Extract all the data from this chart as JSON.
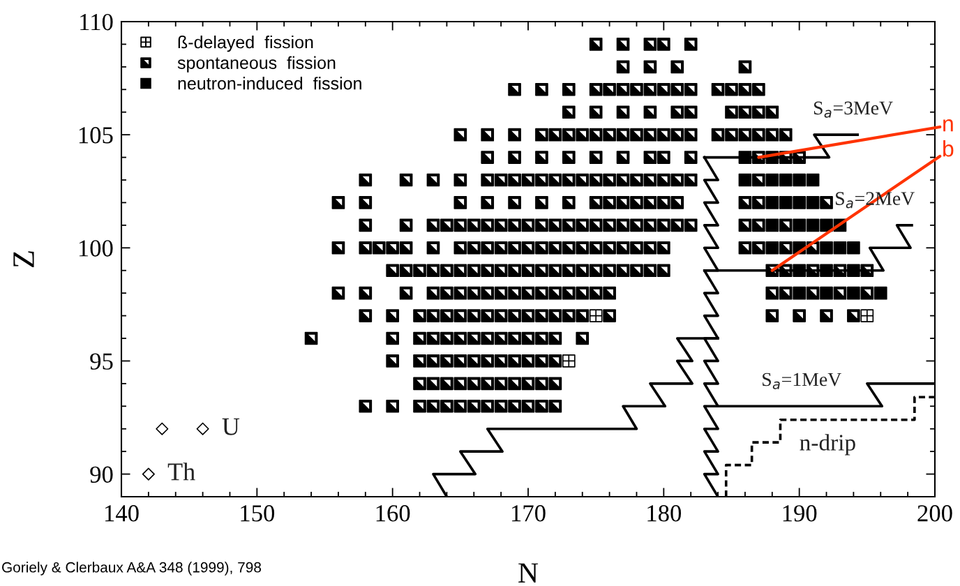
{
  "chart_data": {
    "type": "scatter",
    "xlabel": "N",
    "ylabel": "Z",
    "xlim": [
      140,
      200
    ],
    "ylim": [
      89,
      110
    ],
    "xticks": [
      140,
      {
        "value": 142,
        "label": null
      },
      {
        "value": 144,
        "label": null
      },
      {
        "value": 146,
        "label": null
      },
      {
        "value": 148,
        "label": null
      },
      150,
      {
        "value": 152,
        "label": null
      },
      {
        "value": 154,
        "label": null
      },
      {
        "value": 156,
        "label": null
      },
      {
        "value": 158,
        "label": null
      },
      160,
      {
        "value": 162,
        "label": null
      },
      {
        "value": 164,
        "label": null
      },
      {
        "value": 166,
        "label": null
      },
      {
        "value": 168,
        "label": null
      },
      170,
      {
        "value": 172,
        "label": null
      },
      {
        "value": 174,
        "label": null
      },
      {
        "value": 176,
        "label": null
      },
      {
        "value": 178,
        "label": null
      },
      180,
      {
        "value": 182,
        "label": null
      },
      {
        "value": 184,
        "label": null
      },
      {
        "value": 186,
        "label": null
      },
      {
        "value": 188,
        "label": null
      },
      190,
      {
        "value": 192,
        "label": null
      },
      {
        "value": 194,
        "label": null
      },
      {
        "value": 196,
        "label": null
      },
      {
        "value": 198,
        "label": null
      },
      200
    ],
    "yticks": [
      {
        "value": 89,
        "label": null
      },
      90,
      {
        "value": 91,
        "label": null
      },
      {
        "value": 92,
        "label": null
      },
      {
        "value": 93,
        "label": null
      },
      {
        "value": 94,
        "label": null
      },
      95,
      {
        "value": 96,
        "label": null
      },
      {
        "value": 97,
        "label": null
      },
      {
        "value": 98,
        "label": null
      },
      {
        "value": 99,
        "label": null
      },
      100,
      {
        "value": 101,
        "label": null
      },
      {
        "value": 102,
        "label": null
      },
      {
        "value": 103,
        "label": null
      },
      {
        "value": 104,
        "label": null
      },
      105,
      {
        "value": 106,
        "label": null
      },
      {
        "value": 107,
        "label": null
      },
      {
        "value": 108,
        "label": null
      },
      {
        "value": 109,
        "label": null
      },
      110
    ],
    "legend": "top left",
    "series": [
      {
        "name": "ß-delayed  fission",
        "marker": "cross",
        "color": "#000000",
        "x": [
          175,
          195,
          173
        ],
        "values": [
          97,
          97,
          95
        ]
      },
      {
        "name": "spontaneous  fission",
        "marker": "triangle",
        "color": "#000000",
        "x": [
          175,
          177,
          179,
          180,
          182,
          177,
          179,
          181,
          186,
          169,
          171,
          173,
          175,
          176,
          177,
          178,
          179,
          180,
          181,
          182,
          184,
          185,
          186,
          187,
          173,
          175,
          177,
          179,
          181,
          182,
          185,
          186,
          187,
          188,
          165,
          167,
          169,
          171,
          172,
          173,
          174,
          175,
          176,
          177,
          178,
          179,
          180,
          181,
          182,
          184,
          185,
          186,
          187,
          188,
          189,
          167,
          169,
          171,
          173,
          175,
          177,
          179,
          180,
          182,
          187,
          189,
          190,
          158,
          161,
          163,
          165,
          167,
          168,
          169,
          170,
          171,
          172,
          173,
          174,
          175,
          176,
          177,
          178,
          179,
          180,
          181,
          182,
          187,
          156,
          158,
          165,
          167,
          169,
          171,
          173,
          175,
          176,
          177,
          178,
          179,
          180,
          181,
          186,
          187,
          192,
          158,
          161,
          163,
          164,
          165,
          166,
          167,
          168,
          169,
          170,
          171,
          172,
          173,
          174,
          175,
          176,
          177,
          178,
          179,
          180,
          181,
          182,
          186,
          187,
          189,
          156,
          158,
          159,
          160,
          161,
          163,
          165,
          166,
          167,
          168,
          169,
          170,
          171,
          172,
          173,
          174,
          175,
          176,
          177,
          178,
          179,
          180,
          186,
          187,
          189,
          191,
          160,
          161,
          162,
          163,
          164,
          165,
          166,
          167,
          168,
          169,
          170,
          171,
          172,
          173,
          174,
          175,
          176,
          177,
          178,
          179,
          180,
          188,
          189,
          191,
          193,
          195,
          156,
          158,
          161,
          163,
          164,
          165,
          166,
          167,
          168,
          169,
          170,
          171,
          172,
          173,
          174,
          175,
          176,
          188,
          189,
          191,
          193,
          195,
          158,
          160,
          162,
          163,
          164,
          165,
          166,
          167,
          168,
          169,
          170,
          171,
          172,
          173,
          174,
          176,
          188,
          190,
          192,
          194,
          154,
          160,
          162,
          163,
          164,
          165,
          166,
          167,
          168,
          169,
          170,
          171,
          172,
          174,
          160,
          162,
          163,
          164,
          165,
          166,
          167,
          168,
          169,
          170,
          171,
          172,
          162,
          163,
          164,
          165,
          166,
          167,
          168,
          169,
          170,
          171,
          172,
          158,
          160,
          162,
          163,
          164,
          165,
          166,
          167,
          168,
          169,
          170,
          171,
          172
        ],
        "values": [
          109,
          109,
          109,
          109,
          109,
          108,
          108,
          108,
          108,
          107,
          107,
          107,
          107,
          107,
          107,
          107,
          107,
          107,
          107,
          107,
          107,
          107,
          107,
          107,
          106,
          106,
          106,
          106,
          106,
          106,
          106,
          106,
          106,
          106,
          105,
          105,
          105,
          105,
          105,
          105,
          105,
          105,
          105,
          105,
          105,
          105,
          105,
          105,
          105,
          105,
          105,
          105,
          105,
          105,
          105,
          104,
          104,
          104,
          104,
          104,
          104,
          104,
          104,
          104,
          104,
          104,
          104,
          103,
          103,
          103,
          103,
          103,
          103,
          103,
          103,
          103,
          103,
          103,
          103,
          103,
          103,
          103,
          103,
          103,
          103,
          103,
          103,
          103,
          102,
          102,
          102,
          102,
          102,
          102,
          102,
          102,
          102,
          102,
          102,
          102,
          102,
          102,
          102,
          102,
          102,
          101,
          101,
          101,
          101,
          101,
          101,
          101,
          101,
          101,
          101,
          101,
          101,
          101,
          101,
          101,
          101,
          101,
          101,
          101,
          101,
          101,
          101,
          101,
          101,
          101,
          100,
          100,
          100,
          100,
          100,
          100,
          100,
          100,
          100,
          100,
          100,
          100,
          100,
          100,
          100,
          100,
          100,
          100,
          100,
          100,
          100,
          100,
          100,
          100,
          100,
          100,
          99,
          99,
          99,
          99,
          99,
          99,
          99,
          99,
          99,
          99,
          99,
          99,
          99,
          99,
          99,
          99,
          99,
          99,
          99,
          99,
          99,
          99,
          99,
          99,
          99,
          99,
          98,
          98,
          98,
          98,
          98,
          98,
          98,
          98,
          98,
          98,
          98,
          98,
          98,
          98,
          98,
          98,
          98,
          98,
          98,
          98,
          98,
          98,
          97,
          97,
          97,
          97,
          97,
          97,
          97,
          97,
          97,
          97,
          97,
          97,
          97,
          97,
          97,
          97,
          97,
          97,
          97,
          97,
          96,
          96,
          96,
          96,
          96,
          96,
          96,
          96,
          96,
          96,
          96,
          96,
          96,
          96,
          95,
          95,
          95,
          95,
          95,
          95,
          95,
          95,
          95,
          95,
          95,
          95,
          94,
          94,
          94,
          94,
          94,
          94,
          94,
          94,
          94,
          94,
          94,
          93,
          93,
          93,
          93,
          93,
          93,
          93,
          93,
          93,
          93,
          93,
          93,
          93
        ]
      },
      {
        "name": "neutron-induced  fission",
        "marker": "square",
        "color": "#000000",
        "x": [
          186,
          188,
          186,
          188,
          189,
          190,
          191,
          188,
          189,
          190,
          191,
          188,
          190,
          191,
          192,
          193,
          188,
          190,
          192,
          193,
          194,
          190,
          192,
          194,
          190,
          192,
          194,
          196
        ],
        "values": [
          104,
          104,
          103,
          103,
          103,
          103,
          103,
          102,
          102,
          102,
          102,
          101,
          101,
          101,
          101,
          101,
          100,
          100,
          100,
          100,
          100,
          99,
          99,
          99,
          98,
          98,
          98,
          98
        ]
      },
      {
        "marker": "diamond",
        "color": "#000000",
        "x": [
          142,
          143,
          146
        ],
        "values": [
          90,
          92,
          92
        ]
      },
      {
        "type": "line",
        "line_style": "solid",
        "color": "#000000",
        "x": [
          183,
          184,
          183,
          184,
          183,
          184,
          183,
          184,
          183,
          184,
          183,
          184,
          183,
          184,
          183,
          184,
          183,
          184,
          183,
          184,
          183,
          184,
          183,
          184,
          183,
          184,
          183,
          184,
          183,
          184
        ],
        "values": [
          104,
          103,
          103,
          102,
          102,
          101,
          101,
          100,
          100,
          99,
          99,
          98,
          98,
          97,
          97,
          96,
          96,
          95,
          95,
          94,
          94,
          93,
          93,
          92,
          92,
          91,
          91,
          90,
          90,
          89
        ]
      },
      {
        "type": "line",
        "line_style": "solid",
        "color": "#000000",
        "x": [
          194.3,
          191.1,
          192.2,
          183
        ],
        "values": [
          105,
          105,
          104,
          104
        ]
      },
      {
        "type": "line",
        "line_style": "solid",
        "color": "#000000",
        "x": [
          198.3,
          197.2,
          198.2,
          195.2,
          196.2,
          183
        ],
        "values": [
          101,
          101,
          100,
          100,
          99,
          99
        ]
      },
      {
        "type": "line",
        "line_style": "solid",
        "color": "#000000",
        "x": [
          200,
          195,
          196.1,
          184
        ],
        "values": [
          94,
          94,
          93,
          93
        ]
      },
      {
        "type": "line",
        "line_style": "solid",
        "color": "#000000",
        "x": [
          184,
          181,
          182.1,
          181,
          182.1,
          179,
          180.1,
          177,
          178,
          167,
          168.1,
          165,
          166.1,
          163,
          164
        ],
        "values": [
          96,
          96,
          95,
          95,
          94,
          94,
          93,
          93,
          92,
          92,
          91,
          91,
          90,
          90,
          89
        ]
      },
      {
        "type": "line",
        "line_style": "dashed",
        "color": "#000000",
        "x": [
          184.6,
          184.6,
          186.5,
          186.5,
          188.6,
          188.6,
          198.5,
          198.5,
          200
        ],
        "values": [
          89,
          90.4,
          90.4,
          91.4,
          91.4,
          92.4,
          92.4,
          93.4,
          93.4
        ]
      }
    ],
    "annotations": [
      "S$_{a}$=3MeV",
      "S$_{a}$=2MeV",
      "S$_{a}$=1MeV",
      "n-drip",
      "U",
      "Th",
      {
        "text": "n",
        "x": 187,
        "y": 104
      },
      {
        "text": "b",
        "x": 188,
        "y": 99
      },
      "Goriely & Clerbaux A&A 348 (1999), 798"
    ]
  }
}
